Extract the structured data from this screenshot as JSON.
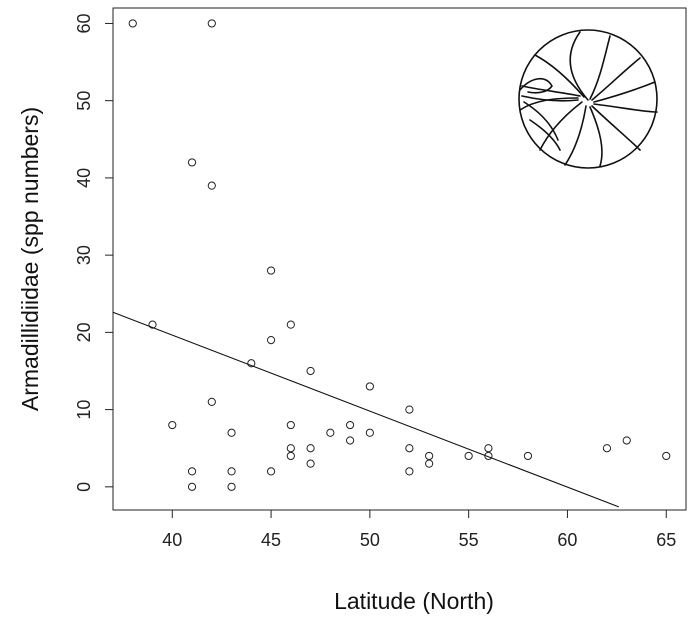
{
  "chart_data": {
    "type": "scatter",
    "xlabel": "Latitude (North)",
    "ylabel": "Armadillidiidae (spp numbers)",
    "xlim": [
      37,
      66
    ],
    "ylim": [
      -3,
      62
    ],
    "xticks": [
      40,
      45,
      50,
      55,
      60,
      65
    ],
    "yticks": [
      0,
      10,
      20,
      30,
      40,
      50,
      60
    ],
    "points": [
      {
        "x": 38,
        "y": 60
      },
      {
        "x": 42,
        "y": 60
      },
      {
        "x": 41,
        "y": 42
      },
      {
        "x": 42,
        "y": 39
      },
      {
        "x": 45,
        "y": 28
      },
      {
        "x": 39,
        "y": 21
      },
      {
        "x": 46,
        "y": 21
      },
      {
        "x": 45,
        "y": 19
      },
      {
        "x": 44,
        "y": 16
      },
      {
        "x": 47,
        "y": 15
      },
      {
        "x": 50,
        "y": 13
      },
      {
        "x": 42,
        "y": 11
      },
      {
        "x": 52,
        "y": 10
      },
      {
        "x": 40,
        "y": 8
      },
      {
        "x": 46,
        "y": 8
      },
      {
        "x": 49,
        "y": 8
      },
      {
        "x": 43,
        "y": 7
      },
      {
        "x": 48,
        "y": 7
      },
      {
        "x": 50,
        "y": 7
      },
      {
        "x": 49,
        "y": 6
      },
      {
        "x": 63,
        "y": 6
      },
      {
        "x": 46,
        "y": 5
      },
      {
        "x": 47,
        "y": 5
      },
      {
        "x": 52,
        "y": 5
      },
      {
        "x": 56,
        "y": 5
      },
      {
        "x": 62,
        "y": 5
      },
      {
        "x": 46,
        "y": 4
      },
      {
        "x": 53,
        "y": 4
      },
      {
        "x": 55,
        "y": 4
      },
      {
        "x": 56,
        "y": 4
      },
      {
        "x": 58,
        "y": 4
      },
      {
        "x": 65,
        "y": 4
      },
      {
        "x": 47,
        "y": 3
      },
      {
        "x": 53,
        "y": 3
      },
      {
        "x": 41,
        "y": 2
      },
      {
        "x": 43,
        "y": 2
      },
      {
        "x": 45,
        "y": 2
      },
      {
        "x": 52,
        "y": 2
      },
      {
        "x": 41,
        "y": 0
      },
      {
        "x": 43,
        "y": 0
      }
    ],
    "regression": {
      "x": [
        37,
        62.6
      ],
      "y": [
        22.6,
        -2.6
      ]
    },
    "grid": false,
    "inset": "pill-woodlouse-drawing"
  }
}
